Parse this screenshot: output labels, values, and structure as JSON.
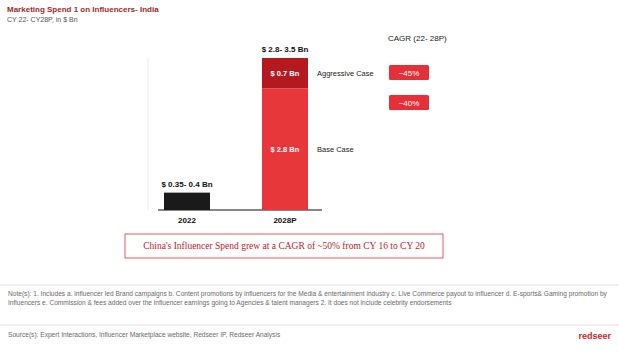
{
  "chart_data": {
    "type": "bar",
    "stacked": true,
    "title": "Marketing Spend 1 on Influencers- India",
    "subtitle": "CY 22- CY28P, in $ Bn",
    "categories": [
      "2022",
      "2028P"
    ],
    "series": [
      {
        "name": "Base Case",
        "colors": [
          "#1a1a1a",
          "#e8373a"
        ],
        "values": [
          0.4,
          2.8
        ],
        "value_labels": [
          null,
          "$ 2.8 Bn"
        ]
      },
      {
        "name": "Aggressive Case",
        "color": "#b3191f",
        "values": [
          null,
          0.7
        ],
        "value_labels": [
          null,
          "$ 0.7 Bn"
        ]
      }
    ],
    "ylim": [
      0,
      3.5
    ],
    "yticks": [],
    "tick_labels": "x",
    "grid": false,
    "data_labels": true,
    "annotations": [
      "$ 2.8- 3.5 Bn",
      "$ 0.35- 0.4 Bn",
      "CAGR (22- 28P)",
      "~45%",
      "~40%",
      "China's Influencer Spend grew at a CAGR of ~50% from CY 16 to CY 20"
    ],
    "notes": "Note(s): 1. Includes a. influencer led Brand campaigns b. Content promotions by influencers for the Media & entertainment industry c. Live Commerce payout to influencer d. E-sports& Gaming promotion by Influencers e. Commission & fees added over the influencer earnings going to Agencies & talent managers 2. It does not include celebrity endorsements",
    "source": "Source(s): Expert Interactions, Influencer Marketplace website, Redseer IP, Redseer Analysis",
    "brand": "redseer"
  }
}
